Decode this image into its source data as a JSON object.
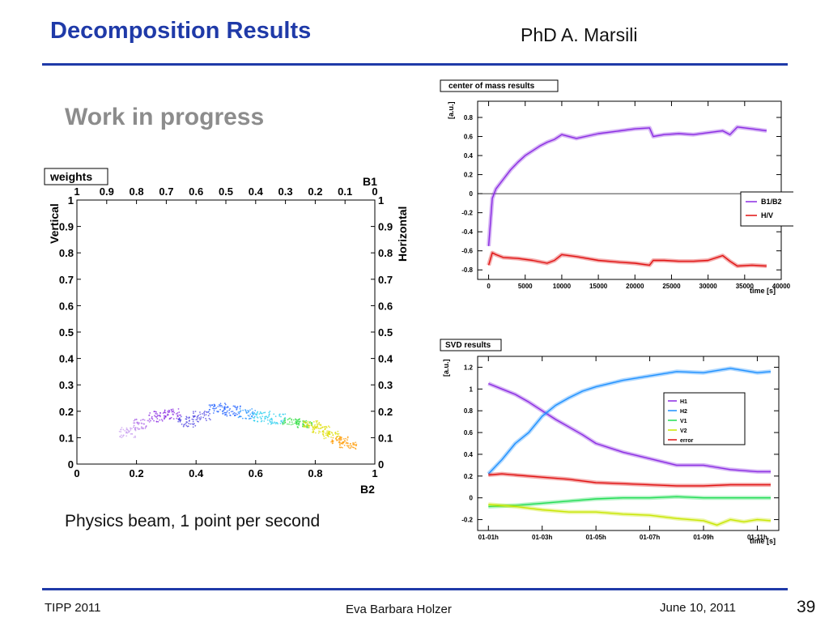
{
  "slide": {
    "title": "Decomposition Results",
    "author": "PhD A. Marsili",
    "subtitle": "Work in progress",
    "caption": "Physics beam, 1 point per second",
    "footer_left": "TIPP 2011",
    "footer_center": "Eva Barbara Holzer",
    "footer_right": "June 10, 2011",
    "page_number": "39"
  },
  "colors": {
    "title_blue": "#1f3aa8",
    "subtitle_gray": "#8c8c8c",
    "purple": "#8a2be2",
    "red": "#e01010",
    "blue": "#1e90ff",
    "green": "#22dd55",
    "yellow": "#c8e600"
  },
  "chart_data": [
    {
      "type": "scatter",
      "title": "weights",
      "xlabel": "B2",
      "ylabel": "Vertical",
      "top_axis_label": "B1",
      "right_axis_label": "Horizontal",
      "xlim": [
        0,
        1
      ],
      "ylim": [
        0,
        1
      ],
      "x_ticks": [
        "0",
        "0.2",
        "0.4",
        "0.6",
        "0.8",
        "1"
      ],
      "y_ticks": [
        "0",
        "0.1",
        "0.2",
        "0.3",
        "0.4",
        "0.5",
        "0.6",
        "0.7",
        "0.8",
        "0.9",
        "1"
      ],
      "top_ticks": [
        "1",
        "0.9",
        "0.8",
        "0.7",
        "0.6",
        "0.5",
        "0.4",
        "0.3",
        "0.2",
        "0.1",
        "0"
      ],
      "right_ticks": [
        "0",
        "0.1",
        "0.2",
        "0.3",
        "0.4",
        "0.5",
        "0.6",
        "0.7",
        "0.8",
        "0.9",
        "1"
      ],
      "points": [
        {
          "x": 0.17,
          "y": 0.12
        },
        {
          "x": 0.22,
          "y": 0.15
        },
        {
          "x": 0.27,
          "y": 0.18
        },
        {
          "x": 0.32,
          "y": 0.19
        },
        {
          "x": 0.37,
          "y": 0.16
        },
        {
          "x": 0.42,
          "y": 0.18
        },
        {
          "x": 0.47,
          "y": 0.21
        },
        {
          "x": 0.52,
          "y": 0.2
        },
        {
          "x": 0.57,
          "y": 0.19
        },
        {
          "x": 0.62,
          "y": 0.18
        },
        {
          "x": 0.67,
          "y": 0.17
        },
        {
          "x": 0.72,
          "y": 0.16
        },
        {
          "x": 0.76,
          "y": 0.15
        },
        {
          "x": 0.79,
          "y": 0.15
        },
        {
          "x": 0.82,
          "y": 0.13
        },
        {
          "x": 0.85,
          "y": 0.11
        },
        {
          "x": 0.88,
          "y": 0.09
        },
        {
          "x": 0.91,
          "y": 0.07
        }
      ]
    },
    {
      "type": "line",
      "title": "center of mass results",
      "xlabel": "time [s]",
      "ylabel": "[a.u.]",
      "xlim": [
        -1500,
        40000
      ],
      "ylim": [
        -0.9,
        0.97
      ],
      "x_ticks": [
        "0",
        "5000",
        "10000",
        "15000",
        "20000",
        "25000",
        "30000",
        "35000",
        "40000"
      ],
      "y_ticks": [
        "-0.8",
        "-0.6",
        "-0.4",
        "-0.2",
        "0",
        "0.2",
        "0.4",
        "0.6",
        "0.8"
      ],
      "legend_position": "right",
      "series": [
        {
          "name": "B1/B2",
          "color": "#8a2be2",
          "x": [
            0,
            500,
            1000,
            2000,
            3000,
            4000,
            5000,
            6000,
            7000,
            8000,
            9000,
            10000,
            12000,
            15000,
            18000,
            20000,
            22000,
            22500,
            24000,
            26000,
            28000,
            30000,
            32000,
            33000,
            34000,
            36000,
            38000
          ],
          "values": [
            -0.55,
            -0.05,
            0.05,
            0.15,
            0.25,
            0.33,
            0.4,
            0.45,
            0.5,
            0.54,
            0.57,
            0.62,
            0.58,
            0.63,
            0.66,
            0.68,
            0.69,
            0.6,
            0.62,
            0.63,
            0.62,
            0.64,
            0.66,
            0.62,
            0.7,
            0.68,
            0.66
          ]
        },
        {
          "name": "H/V",
          "color": "#e01010",
          "x": [
            0,
            500,
            1000,
            2000,
            4000,
            6000,
            8000,
            9000,
            10000,
            12000,
            15000,
            18000,
            20000,
            22000,
            22500,
            24000,
            26000,
            28000,
            30000,
            32000,
            33000,
            34000,
            36000,
            38000
          ],
          "values": [
            -0.75,
            -0.62,
            -0.64,
            -0.67,
            -0.68,
            -0.7,
            -0.73,
            -0.7,
            -0.64,
            -0.66,
            -0.7,
            -0.72,
            -0.73,
            -0.75,
            -0.7,
            -0.7,
            -0.71,
            -0.71,
            -0.7,
            -0.65,
            -0.71,
            -0.76,
            -0.75,
            -0.76
          ]
        }
      ]
    },
    {
      "type": "line",
      "title": "SVD results",
      "xlabel": "time [s]",
      "ylabel": "[a.u.]",
      "xlim": [
        -0.4,
        10.8
      ],
      "ylim": [
        -0.3,
        1.3
      ],
      "x_ticks": [
        "01-01h",
        "01-03h",
        "01-05h",
        "01-07h",
        "01-09h",
        "01-11h"
      ],
      "y_ticks": [
        "-0.2",
        "0",
        "0.2",
        "0.4",
        "0.6",
        "0.8",
        "1",
        "1.2"
      ],
      "legend_position": "top-right",
      "series": [
        {
          "name": "H1",
          "color": "#8a2be2",
          "x": [
            0,
            0.5,
            1,
            1.5,
            2,
            2.5,
            3,
            3.5,
            4,
            5,
            6,
            7,
            8,
            9,
            10,
            10.5
          ],
          "values": [
            1.05,
            1.0,
            0.95,
            0.88,
            0.8,
            0.72,
            0.65,
            0.58,
            0.5,
            0.42,
            0.36,
            0.3,
            0.3,
            0.26,
            0.24,
            0.24
          ]
        },
        {
          "name": "H2",
          "color": "#1e90ff",
          "x": [
            0,
            0.5,
            1,
            1.5,
            2,
            2.5,
            3,
            3.5,
            4,
            5,
            6,
            7,
            8,
            9,
            10,
            10.5
          ],
          "values": [
            0.22,
            0.35,
            0.5,
            0.6,
            0.75,
            0.85,
            0.92,
            0.98,
            1.02,
            1.08,
            1.12,
            1.16,
            1.15,
            1.19,
            1.15,
            1.16
          ]
        },
        {
          "name": "V1",
          "color": "#22dd55",
          "x": [
            0,
            1,
            2,
            3,
            4,
            5,
            6,
            7,
            8,
            9,
            10,
            10.5
          ],
          "values": [
            -0.08,
            -0.07,
            -0.05,
            -0.03,
            -0.01,
            0.0,
            0.0,
            0.01,
            0.0,
            0.0,
            0.0,
            0.0
          ]
        },
        {
          "name": "V2",
          "color": "#c8e600",
          "x": [
            0,
            1,
            2,
            3,
            4,
            5,
            6,
            7,
            8,
            8.5,
            9,
            9.5,
            10,
            10.5
          ],
          "values": [
            -0.06,
            -0.08,
            -0.11,
            -0.13,
            -0.13,
            -0.15,
            -0.16,
            -0.19,
            -0.21,
            -0.25,
            -0.2,
            -0.22,
            -0.2,
            -0.21
          ]
        },
        {
          "name": "error",
          "color": "#e01010",
          "x": [
            0,
            0.5,
            1,
            2,
            3,
            4,
            5,
            6,
            7,
            8,
            9,
            10,
            10.5
          ],
          "values": [
            0.21,
            0.22,
            0.21,
            0.19,
            0.17,
            0.14,
            0.13,
            0.12,
            0.11,
            0.11,
            0.12,
            0.12,
            0.12
          ]
        }
      ]
    }
  ]
}
